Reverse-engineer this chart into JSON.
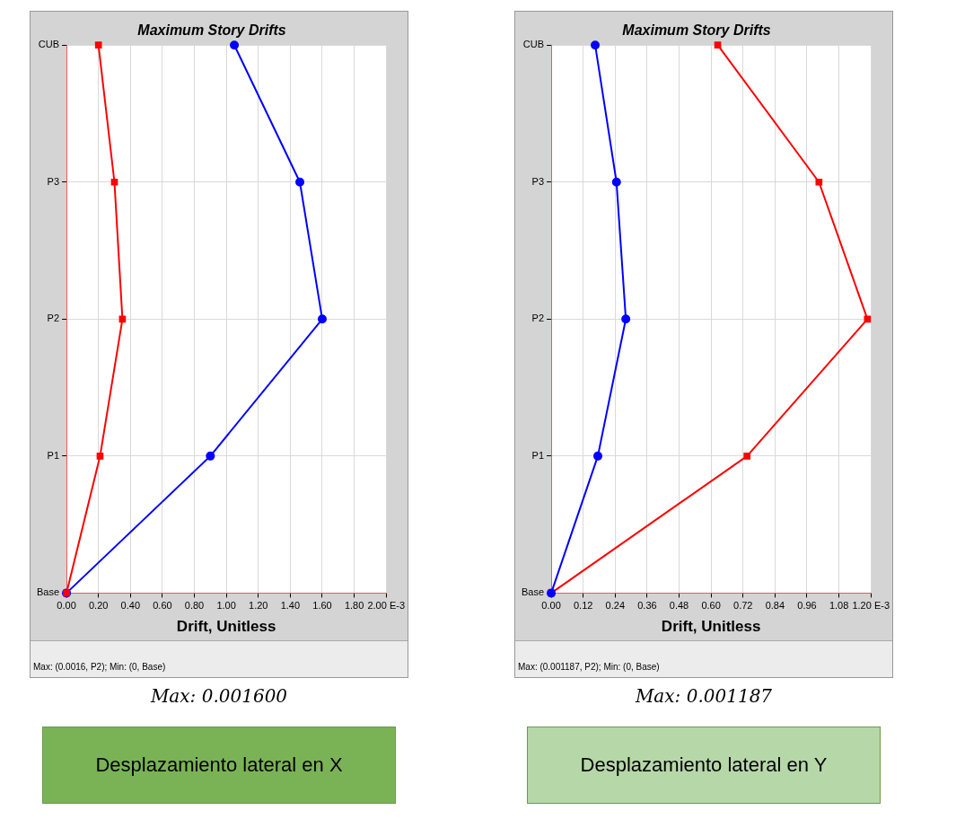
{
  "chart_data": [
    {
      "type": "line",
      "orientation": "horizontal",
      "title": "Maximum Story Drifts",
      "xlabel": "Drift, Unitless",
      "categories": [
        "CUB",
        "P3",
        "P2",
        "P1",
        "Base"
      ],
      "series": [
        {
          "color": "#ff0000",
          "marker": "square",
          "values": [
            0.2,
            0.3,
            0.35,
            0.21,
            0
          ]
        },
        {
          "color": "#0000ff",
          "marker": "circle",
          "values": [
            1.05,
            1.46,
            1.6,
            0.9,
            0
          ]
        }
      ],
      "xlim": [
        0,
        2
      ],
      "xticks": [
        {
          "value": 0,
          "label": "0.00"
        },
        {
          "value": 0.2,
          "label": "0.20"
        },
        {
          "value": 0.4,
          "label": "0.40"
        },
        {
          "value": 0.6,
          "label": "0.60"
        },
        {
          "value": 0.8,
          "label": "0.80"
        },
        {
          "value": 1,
          "label": "1.00"
        },
        {
          "value": 1.2,
          "label": "1.20"
        },
        {
          "value": 1.4,
          "label": "1.40"
        },
        {
          "value": 1.6,
          "label": "1.60"
        },
        {
          "value": 1.8,
          "label": "1.80"
        },
        {
          "value": 2,
          "label": "2.00 E-3"
        }
      ],
      "grid": true,
      "legend": false,
      "annotations": [
        "Max: (0.0016, P2);   Min: (0, Base)",
        "Max: 0.001600",
        "Desplazamiento lateral en X"
      ]
    },
    {
      "type": "line",
      "orientation": "horizontal",
      "title": "Maximum Story Drifts",
      "xlabel": "Drift, Unitless",
      "categories": [
        "CUB",
        "P3",
        "P2",
        "P1",
        "Base"
      ],
      "series": [
        {
          "color": "#0000ff",
          "marker": "circle",
          "values": [
            0.165,
            0.245,
            0.28,
            0.175,
            0
          ]
        },
        {
          "color": "#ff0000",
          "marker": "square",
          "values": [
            0.625,
            1.005,
            1.187,
            0.735,
            0
          ]
        }
      ],
      "xlim": [
        0,
        1.2
      ],
      "xticks": [
        {
          "value": 0,
          "label": "0.00"
        },
        {
          "value": 0.12,
          "label": "0.12"
        },
        {
          "value": 0.24,
          "label": "0.24"
        },
        {
          "value": 0.36,
          "label": "0.36"
        },
        {
          "value": 0.48,
          "label": "0.48"
        },
        {
          "value": 0.6,
          "label": "0.60"
        },
        {
          "value": 0.72,
          "label": "0.72"
        },
        {
          "value": 0.84,
          "label": "0.84"
        },
        {
          "value": 0.96,
          "label": "0.96"
        },
        {
          "value": 1.08,
          "label": "1.08"
        },
        {
          "value": 1.2,
          "label": "1.20 E-3"
        }
      ],
      "grid": true,
      "legend": false,
      "annotations": [
        "Max: (0.001187, P2);   Min: (0, Base)",
        "Max: 0.001187",
        "Desplazamiento lateral en Y"
      ]
    }
  ]
}
